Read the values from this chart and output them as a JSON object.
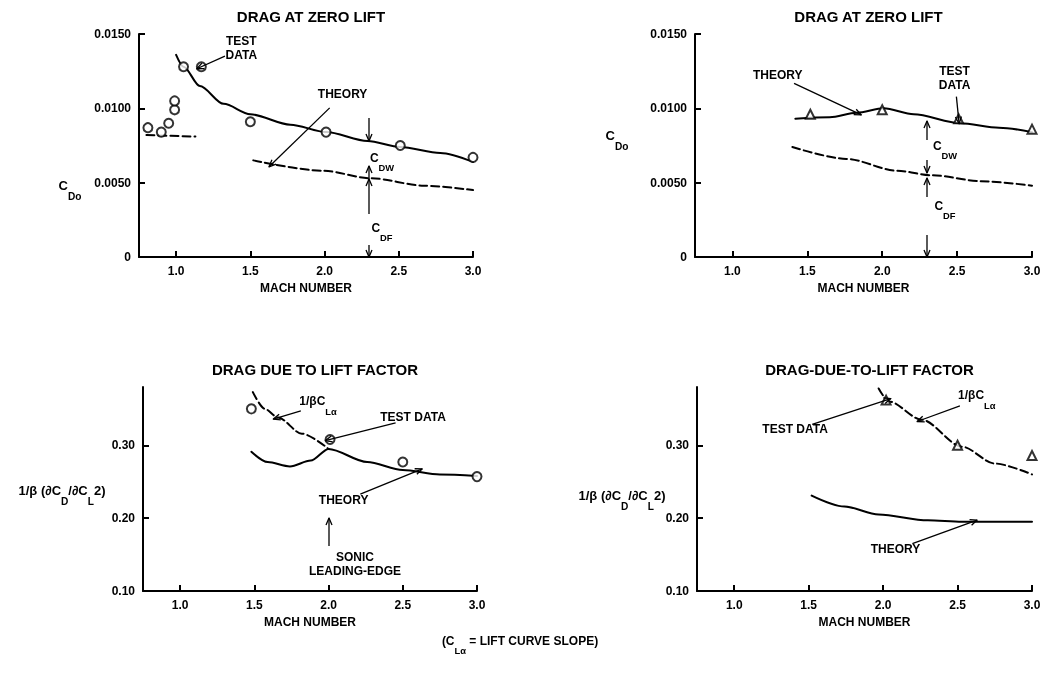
{
  "chart_data": [
    {
      "type": "line",
      "title": "DRAG AT ZERO LIFT",
      "xlabel": "MACH NUMBER",
      "ylabel": "C$_{Do}$",
      "xlim": [
        0.75,
        3.0
      ],
      "ylim": [
        0,
        0.015
      ],
      "xticks": [
        {
          "value": 1,
          "label": "1.0"
        },
        {
          "value": 1.5,
          "label": "1.5"
        },
        {
          "value": 2,
          "label": "2.0"
        },
        {
          "value": 2.5,
          "label": "2.5"
        },
        {
          "value": 3,
          "label": "3.0"
        }
      ],
      "yticks": [
        0,
        {
          "value": 0.005,
          "label": "0.0050"
        },
        {
          "value": 0.01,
          "label": "0.0100"
        },
        {
          "value": 0.015,
          "label": "0.0150"
        }
      ],
      "series": [
        {
          "type": "scatter",
          "marker": "circle",
          "color": "#000000",
          "x": [
            0.81,
            0.9,
            0.95,
            0.99,
            0.99,
            1.05,
            1.17,
            1.5,
            2.01,
            2.51,
            3.0
          ],
          "values": [
            0.0087,
            0.0084,
            0.009,
            0.0099,
            0.0105,
            0.0128,
            0.0128,
            0.0091,
            0.0084,
            0.0075,
            0.0067
          ]
        },
        {
          "line_style": "solid",
          "color": "#000000",
          "x": [
            1.0,
            1.05,
            1.16,
            1.32,
            1.5,
            1.77,
            2.01,
            2.29,
            2.51,
            2.78,
            3.0
          ],
          "values": [
            0.0136,
            0.0128,
            0.0115,
            0.0103,
            0.0096,
            0.0089,
            0.0084,
            0.0078,
            0.0074,
            0.007,
            0.0064
          ]
        },
        {
          "line_style": "dashed",
          "color": "#000000",
          "x": [
            0.8,
            1.13,
            1.3,
            1.52,
            1.99,
            2.31,
            2.67,
            3.0
          ],
          "values": [
            0.0082,
            0.0081,
            null,
            0.0065,
            0.0058,
            0.0053,
            0.0048,
            0.0045
          ]
        }
      ],
      "annotations": [
        {
          "text": "TEST\nDATA",
          "x": 1.17,
          "y": 0.0128
        },
        {
          "text": "THEORY",
          "x": 1.65,
          "y": 0.0063
        },
        "C$_{DW}$",
        "C$_{DF}$"
      ]
    },
    {
      "type": "line",
      "title": "DRAG AT ZERO LIFT",
      "xlabel": "MACH NUMBER",
      "ylabel": "C$_{Do}$",
      "xlim": [
        0.75,
        3.0
      ],
      "ylim": [
        0,
        0.015
      ],
      "xticks": [
        {
          "value": 1,
          "label": "1.0"
        },
        {
          "value": 1.5,
          "label": "1.5"
        },
        {
          "value": 2,
          "label": "2.0"
        },
        {
          "value": 2.5,
          "label": "2.5"
        },
        {
          "value": 3,
          "label": "3.0"
        }
      ],
      "yticks": [
        0,
        {
          "value": 0.005,
          "label": "0.0050"
        },
        {
          "value": 0.01,
          "label": "0.0100"
        },
        {
          "value": 0.015,
          "label": "0.0150"
        }
      ],
      "series": [
        {
          "line_style": "solid",
          "color": "#000000",
          "x": [
            1.42,
            1.65,
            1.83,
            2.01,
            2.21,
            2.52,
            2.78,
            3.0
          ],
          "values": [
            0.0093,
            0.0094,
            0.0097,
            0.01,
            0.0096,
            0.009,
            0.0087,
            0.0084
          ]
        },
        {
          "line_style": "dashed",
          "color": "#000000",
          "x": [
            1.4,
            1.76,
            2.1,
            2.33,
            2.66,
            3.0
          ],
          "values": [
            0.0074,
            0.0066,
            0.0058,
            0.0055,
            0.0051,
            0.0048
          ]
        },
        {
          "type": "scatter",
          "marker": "triangle",
          "color": "#000000",
          "x": [
            1.52,
            2.0,
            2.51,
            3.0
          ],
          "values": [
            0.0096,
            0.0099,
            0.0093,
            0.0086
          ]
        }
      ],
      "annotations": [
        {
          "text": "THEORY",
          "x": 1.83,
          "y": 0.0097
        },
        {
          "text": "TEST\nDATA",
          "x": 2.51,
          "y": 0.0093
        },
        "C$_{DW}$",
        "C$_{DF}$"
      ]
    },
    {
      "type": "line",
      "title": "DRAG DUE TO LIFT FACTOR",
      "xlabel": "MACH NUMBER",
      "ylabel": "1/β (∂C$_{D}$/∂C$_{L}$2)",
      "xlim": [
        0.75,
        3.0
      ],
      "ylim": [
        0.1,
        0.38
      ],
      "xticks": [
        {
          "value": 1,
          "label": "1.0"
        },
        {
          "value": 1.5,
          "label": "1.5"
        },
        {
          "value": 2,
          "label": "2.0"
        },
        {
          "value": 2.5,
          "label": "2.5"
        },
        {
          "value": 3,
          "label": "3.0"
        }
      ],
      "yticks": [
        {
          "value": 0.1,
          "label": "0.10"
        },
        {
          "value": 0.2,
          "label": "0.20"
        },
        {
          "value": 0.3,
          "label": "0.30"
        }
      ],
      "series": [
        {
          "line_style": "solid",
          "color": "#000000",
          "x": [
            1.48,
            1.59,
            1.74,
            1.88,
            2.0,
            2.26,
            2.5,
            2.75,
            3.0
          ],
          "values": [
            0.291,
            0.277,
            0.271,
            0.279,
            0.295,
            0.277,
            0.266,
            0.26,
            0.258
          ]
        },
        {
          "line_style": "dashed",
          "color": "#000000",
          "x": [
            1.49,
            1.57,
            1.66,
            1.82,
            2.0
          ],
          "values": [
            0.373,
            0.35,
            0.338,
            0.316,
            0.295
          ]
        },
        {
          "type": "scatter",
          "marker": "circle",
          "color": "#000000",
          "x": [
            1.48,
            2.01,
            2.5,
            3.0
          ],
          "values": [
            0.35,
            0.308,
            0.277,
            0.257
          ]
        }
      ],
      "annotations": [
        {
          "text": "1/βC$_{Lα}$",
          "x": 1.66,
          "y": 0.338
        },
        {
          "text": "TEST DATA",
          "x": 2.01,
          "y": 0.308
        },
        {
          "text": "THEORY",
          "x": 2.6,
          "y": 0.265
        },
        "SONIC\nLEADING-EDGE",
        "(C$_{Lα}$ = LIFT CURVE SLOPE)"
      ]
    },
    {
      "type": "line",
      "title": "DRAG-DUE-TO-LIFT FACTOR",
      "xlabel": "MACH NUMBER",
      "ylabel": "1/β (∂C$_{D}$/∂C$_{L}$2)",
      "xlim": [
        0.75,
        3.0
      ],
      "ylim": [
        0.1,
        0.38
      ],
      "xticks": [
        {
          "value": 1,
          "label": "1.0"
        },
        {
          "value": 1.5,
          "label": "1.5"
        },
        {
          "value": 2,
          "label": "2.0"
        },
        {
          "value": 2.5,
          "label": "2.5"
        },
        {
          "value": 3,
          "label": "3.0"
        }
      ],
      "yticks": [
        {
          "value": 0.1,
          "label": "0.10"
        },
        {
          "value": 0.2,
          "label": "0.20"
        },
        {
          "value": 0.3,
          "label": "0.30"
        }
      ],
      "series": [
        {
          "line_style": "solid",
          "color": "#000000",
          "x": [
            1.52,
            1.74,
            1.97,
            2.3,
            2.53,
            3.0
          ],
          "values": [
            0.231,
            0.216,
            0.205,
            0.197,
            0.195,
            0.195
          ]
        },
        {
          "line_style": "dashed",
          "color": "#000000",
          "x": [
            1.97,
            2.04,
            2.26,
            2.53,
            2.75,
            3.0
          ],
          "values": [
            0.378,
            0.36,
            0.335,
            0.298,
            0.275,
            0.26
          ]
        },
        {
          "type": "scatter",
          "marker": "triangle",
          "color": "#000000",
          "x": [
            2.02,
            2.5,
            3.0
          ],
          "values": [
            0.362,
            0.3,
            0.286
          ]
        }
      ],
      "annotations": [
        {
          "text": "TEST DATA",
          "x": 2.02,
          "y": 0.362
        },
        {
          "text": "1/βC$_{Lα}$",
          "x": 2.26,
          "y": 0.335
        },
        {
          "text": "THEORY",
          "x": 2.6,
          "y": 0.195
        }
      ]
    }
  ]
}
